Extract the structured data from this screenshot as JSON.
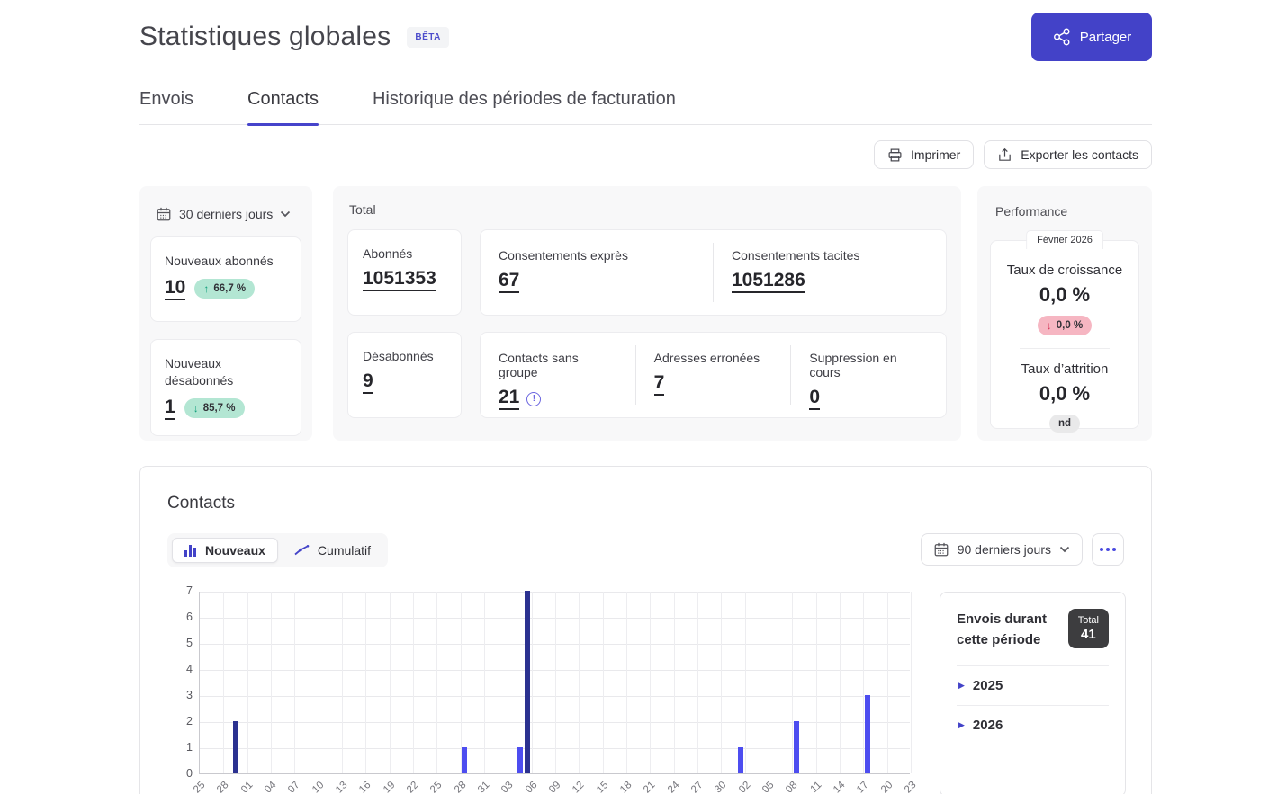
{
  "icons": {
    "up_arrow": "↑",
    "down_arrow": "↓",
    "triangle_right": "▶",
    "exclamation": "!"
  },
  "header": {
    "title": "Statistiques globales",
    "beta": "BÊTA",
    "share_label": "Partager"
  },
  "tabs": {
    "items": [
      {
        "label": "Envois",
        "active": false
      },
      {
        "label": "Contacts",
        "active": true
      },
      {
        "label": "Historique des périodes de facturation",
        "active": false
      }
    ]
  },
  "actions": {
    "print_label": "Imprimer",
    "export_label": "Exporter les contacts"
  },
  "period_panel": {
    "selector_label": "30 derniers jours",
    "cards": [
      {
        "label": "Nouveaux abonnés",
        "value": "10",
        "badge_direction": "up",
        "badge_text": "66,7 %",
        "badge_color": "green"
      },
      {
        "label": "Nouveaux désabonnés",
        "value": "1",
        "badge_direction": "down",
        "badge_text": "85,7 %",
        "badge_color": "green"
      }
    ]
  },
  "total_panel": {
    "title": "Total",
    "abonnes": {
      "label": "Abonnés",
      "value": "1051353"
    },
    "consent_expres": {
      "label": "Consentements exprès",
      "value": "67"
    },
    "consent_tacites": {
      "label": "Consentements tacites",
      "value": "1051286"
    },
    "desabonnes": {
      "label": "Désabonnés",
      "value": "9"
    },
    "sans_groupe": {
      "label": "Contacts sans groupe",
      "value": "21"
    },
    "adresses_erronees": {
      "label": "Adresses erronées",
      "value": "7"
    },
    "suppression": {
      "label": "Suppression en cours",
      "value": "0"
    }
  },
  "performance_panel": {
    "title": "Performance",
    "period_tag": "Février 2026",
    "growth": {
      "label": "Taux de croissance",
      "value": "0,0 %",
      "badge_direction": "down",
      "badge_text": "0,0 %",
      "badge_color": "red"
    },
    "attrition": {
      "label": "Taux d’attrition",
      "value": "0,0 %",
      "badge_text": "nd",
      "badge_color": "gray"
    }
  },
  "contacts_section": {
    "title": "Contacts",
    "toggle": [
      {
        "label": "Nouveaux",
        "active": true
      },
      {
        "label": "Cumulatif",
        "active": false
      }
    ],
    "selector_label": "90 derniers jours",
    "envois": {
      "title": "Envois durant cette période",
      "total_label": "Total",
      "total_value": "41",
      "years": [
        {
          "label": "2025"
        },
        {
          "label": "2026"
        }
      ]
    }
  },
  "chart_data": {
    "type": "bar",
    "ylabel": "",
    "xlabel": "",
    "ylim": [
      0,
      7
    ],
    "yticks": [
      0,
      1,
      2,
      3,
      4,
      5,
      6,
      7
    ],
    "days_total": 90,
    "x_tick_interval_days": 3,
    "x_tick_labels": [
      "25",
      "28",
      "01",
      "04",
      "07",
      "10",
      "13",
      "16",
      "19",
      "22",
      "25",
      "28",
      "31",
      "03",
      "06",
      "09",
      "12",
      "15",
      "18",
      "21",
      "24",
      "27",
      "30",
      "02",
      "05",
      "08",
      "11",
      "14",
      "17",
      "20",
      "23"
    ],
    "bars": [
      {
        "day": 4,
        "value": 2,
        "color": "#2b3190"
      },
      {
        "day": 33,
        "value": 1,
        "color": "#4d4df0"
      },
      {
        "day": 40,
        "value": 1,
        "color": "#4d4df0"
      },
      {
        "day": 41,
        "value": 7,
        "color": "#2b3190"
      },
      {
        "day": 68,
        "value": 1,
        "color": "#4d4df0"
      },
      {
        "day": 75,
        "value": 2,
        "color": "#4d4df0"
      },
      {
        "day": 84,
        "value": 3,
        "color": "#4d4df0"
      }
    ],
    "grid": true,
    "legend": "none"
  },
  "colors": {
    "accent": "#4342c8",
    "bar_navy": "#2b3190",
    "bar_blue": "#4d4df0",
    "green_badge_bg": "#b3e6d3",
    "red_badge_bg": "#f6b6c2",
    "gray_badge_bg": "#e9e9ea"
  }
}
